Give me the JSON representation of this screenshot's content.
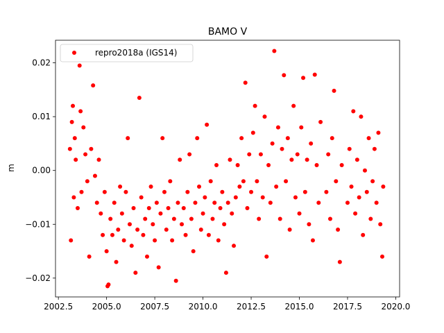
{
  "chart_data": {
    "type": "scatter",
    "title": "BAMO V",
    "xlabel": "",
    "ylabel": "m",
    "xlim": [
      2002.35,
      2020.2
    ],
    "ylim": [
      -0.0235,
      0.0242
    ],
    "x_ticks": [
      2002.5,
      2005.0,
      2007.5,
      2010.0,
      2012.5,
      2015.0,
      2017.5,
      2020.0
    ],
    "x_tick_labels": [
      "2002.5",
      "2005.0",
      "2007.5",
      "2010.0",
      "2012.5",
      "2015.0",
      "2017.5",
      "2020.0"
    ],
    "y_ticks": [
      -0.02,
      -0.01,
      0.0,
      0.01,
      0.02
    ],
    "y_tick_labels": [
      "−0.02",
      "−0.01",
      "0.00",
      "0.01",
      "0.02"
    ],
    "grid": false,
    "legend_position": "top-left",
    "series": [
      {
        "name": "repro2018a (IGS14)",
        "color": "#ff0000",
        "marker": "circle",
        "points": [
          [
            2003.1,
            0.004
          ],
          [
            2003.15,
            -0.013
          ],
          [
            2003.2,
            0.009
          ],
          [
            2003.25,
            0.012
          ],
          [
            2003.3,
            -0.005
          ],
          [
            2003.35,
            0.006
          ],
          [
            2003.4,
            0.002
          ],
          [
            2003.5,
            -0.007
          ],
          [
            2003.6,
            0.0195
          ],
          [
            2003.65,
            0.011
          ],
          [
            2003.7,
            -0.004
          ],
          [
            2003.8,
            0.008
          ],
          [
            2003.9,
            0.003
          ],
          [
            2004.0,
            -0.002
          ],
          [
            2004.1,
            -0.016
          ],
          [
            2004.2,
            0.004
          ],
          [
            2004.3,
            0.0158
          ],
          [
            2004.4,
            -0.001
          ],
          [
            2004.5,
            -0.006
          ],
          [
            2004.6,
            0.002
          ],
          [
            2004.7,
            -0.008
          ],
          [
            2004.8,
            -0.012
          ],
          [
            2004.9,
            -0.004
          ],
          [
            2005.0,
            -0.015
          ],
          [
            2005.05,
            -0.0215
          ],
          [
            2005.1,
            -0.0212
          ],
          [
            2005.2,
            -0.009
          ],
          [
            2005.3,
            -0.012
          ],
          [
            2005.4,
            -0.006
          ],
          [
            2005.5,
            -0.017
          ],
          [
            2005.6,
            -0.011
          ],
          [
            2005.7,
            -0.003
          ],
          [
            2005.8,
            -0.008
          ],
          [
            2005.9,
            -0.013
          ],
          [
            2006.0,
            -0.004
          ],
          [
            2006.1,
            0.006
          ],
          [
            2006.2,
            -0.01
          ],
          [
            2006.3,
            -0.014
          ],
          [
            2006.4,
            -0.007
          ],
          [
            2006.5,
            -0.019
          ],
          [
            2006.6,
            -0.011
          ],
          [
            2006.7,
            0.0135
          ],
          [
            2006.8,
            -0.005
          ],
          [
            2006.9,
            -0.012
          ],
          [
            2007.0,
            -0.009
          ],
          [
            2007.1,
            -0.016
          ],
          [
            2007.2,
            -0.007
          ],
          [
            2007.3,
            -0.003
          ],
          [
            2007.4,
            -0.01
          ],
          [
            2007.5,
            -0.013
          ],
          [
            2007.6,
            -0.006
          ],
          [
            2007.7,
            -0.018
          ],
          [
            2007.8,
            -0.008
          ],
          [
            2007.9,
            0.006
          ],
          [
            2008.0,
            -0.004
          ],
          [
            2008.1,
            -0.011
          ],
          [
            2008.2,
            -0.007
          ],
          [
            2008.3,
            -0.002
          ],
          [
            2008.4,
            -0.013
          ],
          [
            2008.5,
            -0.009
          ],
          [
            2008.6,
            -0.0205
          ],
          [
            2008.7,
            -0.006
          ],
          [
            2008.8,
            0.002
          ],
          [
            2008.9,
            -0.01
          ],
          [
            2009.0,
            -0.007
          ],
          [
            2009.1,
            -0.012
          ],
          [
            2009.2,
            -0.004
          ],
          [
            2009.3,
            0.003
          ],
          [
            2009.4,
            -0.009
          ],
          [
            2009.5,
            -0.015
          ],
          [
            2009.6,
            -0.006
          ],
          [
            2009.7,
            0.006
          ],
          [
            2009.8,
            -0.003
          ],
          [
            2009.9,
            -0.011
          ],
          [
            2010.0,
            -0.008
          ],
          [
            2010.1,
            -0.005
          ],
          [
            2010.2,
            0.0085
          ],
          [
            2010.3,
            -0.012
          ],
          [
            2010.4,
            -0.002
          ],
          [
            2010.5,
            -0.009
          ],
          [
            2010.6,
            -0.006
          ],
          [
            2010.7,
            0.001
          ],
          [
            2010.8,
            -0.013
          ],
          [
            2010.9,
            -0.007
          ],
          [
            2011.0,
            -0.004
          ],
          [
            2011.1,
            -0.01
          ],
          [
            2011.2,
            -0.019
          ],
          [
            2011.3,
            -0.006
          ],
          [
            2011.4,
            0.002
          ],
          [
            2011.5,
            -0.008
          ],
          [
            2011.6,
            -0.014
          ],
          [
            2011.7,
            -0.005
          ],
          [
            2011.8,
            0.001
          ],
          [
            2011.9,
            -0.003
          ],
          [
            2012.0,
            0.006
          ],
          [
            2012.1,
            -0.002
          ],
          [
            2012.2,
            0.0163
          ],
          [
            2012.3,
            -0.007
          ],
          [
            2012.4,
            0.003
          ],
          [
            2012.5,
            -0.004
          ],
          [
            2012.6,
            0.007
          ],
          [
            2012.7,
            0.012
          ],
          [
            2012.8,
            -0.002
          ],
          [
            2012.9,
            -0.009
          ],
          [
            2013.0,
            0.003
          ],
          [
            2013.1,
            -0.005
          ],
          [
            2013.2,
            0.01
          ],
          [
            2013.3,
            -0.016
          ],
          [
            2013.4,
            0.001
          ],
          [
            2013.5,
            -0.006
          ],
          [
            2013.6,
            0.005
          ],
          [
            2013.7,
            0.0222
          ],
          [
            2013.8,
            -0.003
          ],
          [
            2013.9,
            0.008
          ],
          [
            2014.0,
            -0.009
          ],
          [
            2014.1,
            0.004
          ],
          [
            2014.2,
            0.0177
          ],
          [
            2014.3,
            -0.002
          ],
          [
            2014.4,
            0.006
          ],
          [
            2014.5,
            -0.011
          ],
          [
            2014.6,
            0.002
          ],
          [
            2014.7,
            0.012
          ],
          [
            2014.8,
            -0.005
          ],
          [
            2014.9,
            0.003
          ],
          [
            2015.0,
            -0.008
          ],
          [
            2015.1,
            0.008
          ],
          [
            2015.2,
            0.0172
          ],
          [
            2015.3,
            -0.004
          ],
          [
            2015.4,
            0.002
          ],
          [
            2015.5,
            -0.01
          ],
          [
            2015.6,
            0.005
          ],
          [
            2015.7,
            -0.013
          ],
          [
            2015.8,
            0.0178
          ],
          [
            2015.9,
            0.001
          ],
          [
            2016.0,
            -0.006
          ],
          [
            2016.1,
            0.009
          ],
          [
            2016.4,
            -0.004
          ],
          [
            2016.5,
            0.003
          ],
          [
            2016.6,
            -0.009
          ],
          [
            2016.7,
            0.006
          ],
          [
            2016.8,
            0.0148
          ],
          [
            2016.9,
            -0.002
          ],
          [
            2017.0,
            -0.011
          ],
          [
            2017.1,
            -0.017
          ],
          [
            2017.2,
            0.001
          ],
          [
            2017.5,
            -0.006
          ],
          [
            2017.6,
            0.004
          ],
          [
            2017.7,
            -0.003
          ],
          [
            2017.8,
            0.011
          ],
          [
            2017.9,
            -0.008
          ],
          [
            2018.0,
            0.002
          ],
          [
            2018.1,
            -0.005
          ],
          [
            2018.2,
            0.01
          ],
          [
            2018.3,
            -0.012
          ],
          [
            2018.4,
            0.0
          ],
          [
            2018.5,
            -0.004
          ],
          [
            2018.6,
            0.006
          ],
          [
            2018.7,
            -0.009
          ],
          [
            2018.8,
            -0.002
          ],
          [
            2018.9,
            0.004
          ],
          [
            2019.0,
            -0.006
          ],
          [
            2019.1,
            0.007
          ],
          [
            2019.2,
            -0.01
          ],
          [
            2019.3,
            -0.016
          ],
          [
            2019.35,
            -0.003
          ]
        ]
      }
    ]
  }
}
